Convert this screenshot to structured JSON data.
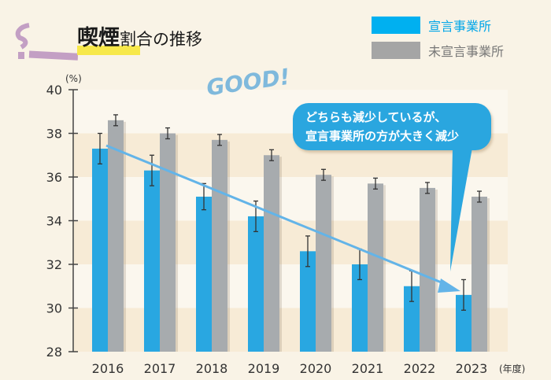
{
  "title": {
    "main": "喫煙",
    "rest": "割合の推移"
  },
  "callout": {
    "line1": "どちらも減少しているが、",
    "line2": "宣言事業所の方が大きく減少"
  },
  "badge": "GOOD!",
  "colors": {
    "declared": "#29a7e1",
    "undeclared": "#a7abae",
    "legend_declared": "#00b0f0",
    "arrow": "#63b4e8"
  },
  "chart_data": {
    "type": "bar",
    "categories": [
      "2016",
      "2017",
      "2018",
      "2019",
      "2020",
      "2021",
      "2022",
      "2023"
    ],
    "xunit": "(年度)",
    "yunit": "(%)",
    "ylim": [
      28,
      40
    ],
    "yticks": [
      "28",
      "30",
      "32",
      "34",
      "36",
      "38",
      "40"
    ],
    "legend_position": "top-right",
    "series": [
      {
        "name": "宣言事業所",
        "values": [
          37.3,
          36.3,
          35.1,
          34.2,
          32.6,
          32.0,
          31.0,
          30.6
        ],
        "error": [
          0.7,
          0.7,
          0.6,
          0.7,
          0.7,
          0.7,
          0.7,
          0.7
        ]
      },
      {
        "name": "未宣言事業所",
        "values": [
          38.6,
          38.0,
          37.7,
          37.0,
          36.1,
          35.7,
          35.5,
          35.1
        ],
        "error": [
          0.25,
          0.25,
          0.25,
          0.25,
          0.25,
          0.25,
          0.25,
          0.25
        ]
      }
    ]
  }
}
